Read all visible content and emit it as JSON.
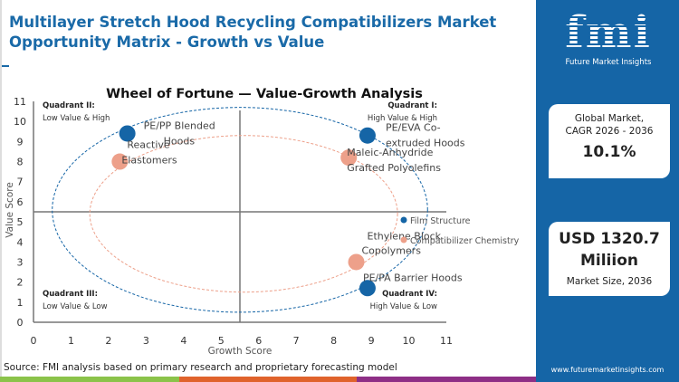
{
  "header": {
    "title": "Multilayer Stretch Hood Recycling Compatibilizers Market Opportunity Matrix - Growth vs Value"
  },
  "chart_data": {
    "type": "scatter",
    "title": "Wheel of Fortune — Value-Growth Analysis",
    "xlabel": "Growth Score",
    "ylabel": "Value Score",
    "xlim": [
      0,
      11
    ],
    "ylim": [
      0,
      11
    ],
    "xticks": [
      0,
      1,
      2,
      3,
      4,
      5,
      6,
      7,
      8,
      9,
      10,
      11
    ],
    "yticks": [
      0,
      1,
      2,
      3,
      4,
      5,
      6,
      7,
      8,
      9,
      10,
      11
    ],
    "quadrant_dividers": {
      "x": 5.5,
      "y": 5.5
    },
    "quadrants": [
      {
        "name": "Quadrant I:",
        "desc": "High Value & High"
      },
      {
        "name": "Quadrant II:",
        "desc": "Low Value & High"
      },
      {
        "name": "Quadrant III:",
        "desc": "Low Value & Low"
      },
      {
        "name": "Quadrant IV:",
        "desc": "High Value & Low"
      }
    ],
    "legend_position": "right",
    "series": [
      {
        "name": "Film Structure",
        "color": "#1565a6",
        "points": [
          {
            "label": "PE/PP Blended Hoods",
            "x": 2.5,
            "y": 9.4
          },
          {
            "label": "PE/EVA Co-extruded Hoods",
            "x": 8.9,
            "y": 9.3
          },
          {
            "label": "PE/PA Barrier Hoods",
            "x": 8.9,
            "y": 1.7
          }
        ]
      },
      {
        "name": "Compatibilizer Chemistry",
        "color": "#eda08a",
        "points": [
          {
            "label": "Reactive Elastomers",
            "x": 2.3,
            "y": 8.0
          },
          {
            "label": "Maleic-Anhydride Grafted Polyolefins",
            "x": 8.4,
            "y": 8.2
          },
          {
            "label": "Ethylene Block Copolymers",
            "x": 8.6,
            "y": 3.0
          }
        ]
      }
    ]
  },
  "source": "Source: FMI analysis based on primary research and proprietary forecasting model",
  "sidebar": {
    "logo_mark": "fmi",
    "logo_text": "Future Market Insights",
    "cagr_label_1": "Global Market,",
    "cagr_label_2": "CAGR 2026 - 2036",
    "cagr_value": "10.1%",
    "size_value_1": "USD 1320.7",
    "size_value_2": "Miliion",
    "size_label": "Market Size, 2036",
    "url": "www.futuremarketinsights.com"
  },
  "strip_colors": [
    "#8bc34a",
    "#e0632c",
    "#8e2f86"
  ]
}
